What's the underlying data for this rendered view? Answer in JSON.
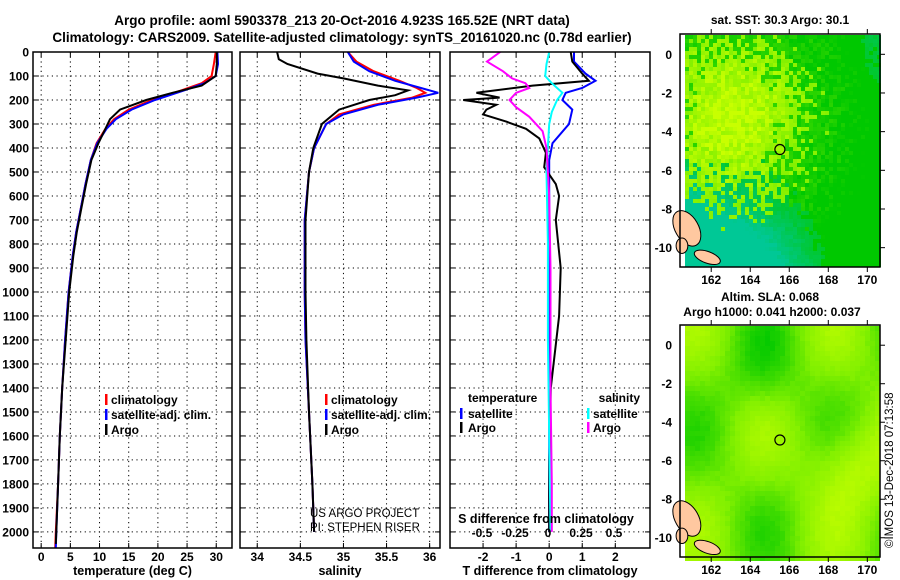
{
  "title_line1": "Argo profile: aoml 5903378_213 20-Oct-2016 4.923S 165.52E (NRT data)",
  "title_line2": "Climatology: CARS2009. Satellite-adjusted climatology: synTS_20161020.nc (0.78d earlier)",
  "credit": "©IMOS 13-Dec-2018 07:13:58",
  "colors": {
    "climatology": "#ff0000",
    "satellite": "#0000ff",
    "argo": "#000000",
    "sal_sat": "#00ffff",
    "sal_argo": "#ff00ff"
  },
  "chart_data": [
    {
      "type": "line",
      "id": "temperature",
      "xlabel": "temperature (deg C)",
      "ylabel": "",
      "xlim": [
        -1.4,
        32.7
      ],
      "ylim": [
        2067,
        0
      ],
      "xticks": [
        0,
        5,
        10,
        15,
        20,
        25,
        30
      ],
      "yticks": [
        0,
        100,
        200,
        300,
        400,
        500,
        600,
        700,
        800,
        900,
        1000,
        1100,
        1200,
        1300,
        1400,
        1500,
        1600,
        1700,
        1800,
        1900,
        2000
      ],
      "grid": true,
      "legend_position": "lower-middle",
      "series": [
        {
          "name": "climatology",
          "color": "#ff0000",
          "points": [
            [
              0,
              29.9
            ],
            [
              50,
              29.6
            ],
            [
              100,
              29.2
            ],
            [
              130,
              27.5
            ],
            [
              160,
              24
            ],
            [
              200,
              19
            ],
            [
              240,
              15
            ],
            [
              280,
              12.5
            ],
            [
              320,
              11
            ],
            [
              380,
              9.5
            ],
            [
              450,
              8.5
            ],
            [
              550,
              7.6
            ],
            [
              650,
              6.8
            ],
            [
              750,
              6
            ],
            [
              850,
              5.4
            ],
            [
              1000,
              4.7
            ],
            [
              1200,
              4.1
            ],
            [
              1400,
              3.6
            ],
            [
              1600,
              3.2
            ],
            [
              1800,
              2.9
            ],
            [
              2000,
              2.5
            ],
            [
              2067,
              2.4
            ]
          ]
        },
        {
          "name": "satellite-adj. clim.",
          "color": "#0000ff",
          "points": [
            [
              0,
              30.2
            ],
            [
              50,
              30.3
            ],
            [
              100,
              29.9
            ],
            [
              130,
              28
            ],
            [
              160,
              24.5
            ],
            [
              200,
              19.5
            ],
            [
              240,
              15.5
            ],
            [
              280,
              12.8
            ],
            [
              320,
              11.2
            ],
            [
              380,
              9.6
            ],
            [
              450,
              8.5
            ],
            [
              550,
              7.6
            ],
            [
              650,
              6.8
            ],
            [
              750,
              6
            ],
            [
              850,
              5.4
            ],
            [
              1000,
              4.7
            ],
            [
              1200,
              4.1
            ],
            [
              1400,
              3.6
            ],
            [
              1600,
              3.2
            ],
            [
              1800,
              2.9
            ],
            [
              2000,
              2.6
            ],
            [
              2067,
              2.5
            ]
          ]
        },
        {
          "name": "Argo",
          "color": "#000000",
          "points": [
            [
              0,
              30.1
            ],
            [
              50,
              30.1
            ],
            [
              100,
              29.9
            ],
            [
              140,
              27.5
            ],
            [
              170,
              22.5
            ],
            [
              200,
              18
            ],
            [
              240,
              13.5
            ],
            [
              280,
              11.8
            ],
            [
              320,
              11
            ],
            [
              380,
              9.8
            ],
            [
              450,
              8.6
            ],
            [
              550,
              7.7
            ],
            [
              650,
              6.9
            ],
            [
              750,
              6.1
            ],
            [
              850,
              5.5
            ],
            [
              1000,
              4.8
            ],
            [
              1200,
              4.2
            ],
            [
              1400,
              3.6
            ],
            [
              1600,
              3.2
            ],
            [
              1800,
              2.9
            ],
            [
              2000,
              2.6
            ],
            [
              2050,
              2.5
            ]
          ]
        }
      ]
    },
    {
      "type": "line",
      "id": "salinity",
      "xlabel": "salinity",
      "xlim": [
        33.8,
        36.12
      ],
      "ylim": [
        2067,
        0
      ],
      "xticks": [
        34,
        34.5,
        35,
        35.5,
        36
      ],
      "grid": true,
      "legend_position": "lower-middle",
      "series": [
        {
          "name": "climatology",
          "color": "#ff0000",
          "points": [
            [
              0,
              35.05
            ],
            [
              40,
              35.15
            ],
            [
              80,
              35.35
            ],
            [
              120,
              35.65
            ],
            [
              150,
              35.85
            ],
            [
              170,
              35.95
            ],
            [
              190,
              35.8
            ],
            [
              220,
              35.35
            ],
            [
              260,
              34.95
            ],
            [
              300,
              34.8
            ],
            [
              400,
              34.66
            ],
            [
              500,
              34.6
            ],
            [
              700,
              34.55
            ],
            [
              1000,
              34.55
            ],
            [
              1200,
              34.56
            ],
            [
              1500,
              34.6
            ],
            [
              1800,
              34.64
            ],
            [
              2000,
              34.66
            ]
          ]
        },
        {
          "name": "satellite-adj. clim.",
          "color": "#0000ff",
          "points": [
            [
              0,
              35.05
            ],
            [
              40,
              35.12
            ],
            [
              80,
              35.3
            ],
            [
              120,
              35.6
            ],
            [
              150,
              35.9
            ],
            [
              170,
              36.1
            ],
            [
              190,
              35.85
            ],
            [
              220,
              35.4
            ],
            [
              260,
              35.0
            ],
            [
              300,
              34.8
            ],
            [
              400,
              34.66
            ],
            [
              500,
              34.6
            ],
            [
              700,
              34.55
            ],
            [
              1000,
              34.55
            ],
            [
              1200,
              34.56
            ],
            [
              1500,
              34.6
            ],
            [
              1800,
              34.64
            ],
            [
              2000,
              34.66
            ]
          ]
        },
        {
          "name": "Argo",
          "color": "#000000",
          "points": [
            [
              0,
              34.23
            ],
            [
              30,
              34.25
            ],
            [
              50,
              34.35
            ],
            [
              90,
              34.7
            ],
            [
              110,
              35.0
            ],
            [
              140,
              35.4
            ],
            [
              160,
              35.75
            ],
            [
              180,
              35.6
            ],
            [
              200,
              35.3
            ],
            [
              240,
              34.95
            ],
            [
              300,
              34.75
            ],
            [
              400,
              34.65
            ],
            [
              500,
              34.6
            ],
            [
              700,
              34.56
            ],
            [
              1000,
              34.56
            ],
            [
              1200,
              34.57
            ],
            [
              1500,
              34.6
            ],
            [
              1800,
              34.64
            ],
            [
              2000,
              34.66
            ]
          ]
        }
      ],
      "annotations": [
        "US ARGO PROJECT",
        "PI: STEPHEN RISER"
      ]
    },
    {
      "type": "line",
      "id": "differences",
      "xlabel": "T difference from climatology",
      "xlim": [
        -3,
        3.05
      ],
      "ylim": [
        2067,
        0
      ],
      "xticks": [
        -2,
        -1,
        0,
        1,
        2
      ],
      "x2label": "S difference from climatology",
      "x2ticks": [
        "-0.5",
        "-0.25",
        "0",
        "0.25",
        "0.5"
      ],
      "grid": true,
      "legend": {
        "temperature_title": "temperature",
        "salinity_title": "salinity",
        "items": [
          "satellite",
          "Argo",
          "satellite",
          "Argo"
        ]
      },
      "series": [
        {
          "name": "temperature satellite",
          "color": "#0000ff",
          "units": "T",
          "points": [
            [
              0,
              0.75
            ],
            [
              40,
              0.75
            ],
            [
              90,
              1.1
            ],
            [
              120,
              1.4
            ],
            [
              150,
              1.0
            ],
            [
              170,
              0.5
            ],
            [
              200,
              0.4
            ],
            [
              240,
              0.7
            ],
            [
              300,
              0.6
            ],
            [
              380,
              0.1
            ],
            [
              450,
              0
            ],
            [
              700,
              0
            ],
            [
              1000,
              0
            ],
            [
              1500,
              0
            ],
            [
              2000,
              0
            ]
          ]
        },
        {
          "name": "temperature Argo",
          "color": "#000000",
          "units": "T",
          "points": [
            [
              0,
              0.65
            ],
            [
              40,
              0.7
            ],
            [
              90,
              1.0
            ],
            [
              120,
              1.2
            ],
            [
              140,
              -0.5
            ],
            [
              170,
              -2.2
            ],
            [
              190,
              -1.5
            ],
            [
              200,
              -2.6
            ],
            [
              220,
              -1.6
            ],
            [
              240,
              -1.9
            ],
            [
              260,
              -2.0
            ],
            [
              290,
              -1.3
            ],
            [
              320,
              -0.7
            ],
            [
              360,
              -0.3
            ],
            [
              420,
              -0.1
            ],
            [
              480,
              -0.15
            ],
            [
              550,
              0.2
            ],
            [
              600,
              0.3
            ],
            [
              700,
              0.2
            ],
            [
              900,
              0.35
            ],
            [
              1100,
              0.3
            ],
            [
              1400,
              0.05
            ],
            [
              1700,
              0
            ],
            [
              2000,
              0
            ]
          ]
        },
        {
          "name": "salinity satellite",
          "color": "#00ffff",
          "units": "S",
          "points": [
            [
              0,
              0
            ],
            [
              50,
              -0.02
            ],
            [
              100,
              -0.03
            ],
            [
              130,
              0.02
            ],
            [
              170,
              0.1
            ],
            [
              200,
              0.06
            ],
            [
              250,
              0.02
            ],
            [
              300,
              0
            ],
            [
              500,
              -0.02
            ],
            [
              800,
              -0.01
            ],
            [
              1200,
              -0.01
            ],
            [
              1600,
              0
            ],
            [
              2000,
              0.01
            ]
          ]
        },
        {
          "name": "salinity Argo",
          "color": "#ff00ff",
          "units": "S",
          "points": [
            [
              0,
              -0.37
            ],
            [
              40,
              -0.47
            ],
            [
              80,
              -0.35
            ],
            [
              110,
              -0.28
            ],
            [
              130,
              -0.18
            ],
            [
              150,
              -0.15
            ],
            [
              170,
              -0.25
            ],
            [
              200,
              -0.3
            ],
            [
              230,
              -0.25
            ],
            [
              270,
              -0.15
            ],
            [
              330,
              -0.05
            ],
            [
              400,
              -0.02
            ],
            [
              600,
              0
            ],
            [
              900,
              0.01
            ],
            [
              1400,
              0.01
            ],
            [
              1800,
              0.02
            ],
            [
              2000,
              0.02
            ]
          ]
        }
      ]
    },
    {
      "type": "heatmap",
      "id": "sst-map",
      "title": "sat. SST: 30.3 Argo: 30.1",
      "xlim": [
        160.4,
        170.65
      ],
      "ylim": [
        -11,
        1.05
      ],
      "xticks": [
        162,
        164,
        166,
        168,
        170
      ],
      "yticks": [
        0,
        -2,
        -4,
        -6,
        -8,
        -10
      ],
      "argo_position": [
        165.52,
        -4.923
      ]
    },
    {
      "type": "heatmap",
      "id": "sla-map",
      "title": "Altim. SLA: 0.068",
      "subtitle": "Argo h1000: 0.041 h2000: 0.037",
      "xlim": [
        160.4,
        170.65
      ],
      "ylim": [
        -11,
        1.05
      ],
      "xticks": [
        162,
        164,
        166,
        168,
        170
      ],
      "yticks": [
        0,
        -2,
        -4,
        -6,
        -8,
        -10
      ],
      "argo_position": [
        165.52,
        -4.923
      ]
    }
  ],
  "legend_profile": [
    "climatology",
    "satellite-adj. clim.",
    "Argo"
  ]
}
